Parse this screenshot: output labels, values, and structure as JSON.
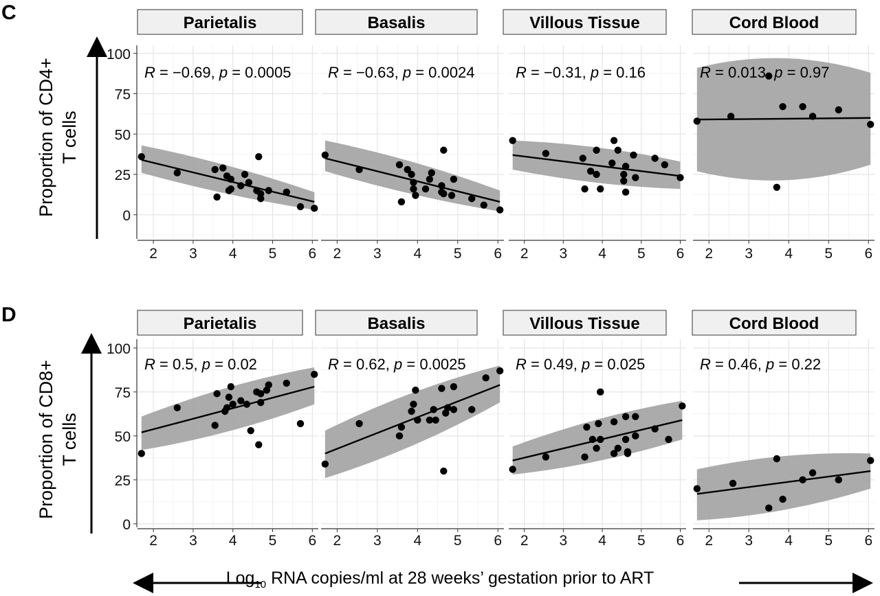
{
  "rows": [
    {
      "letter": "C",
      "ylabel_line1": "Proportion of CD4+",
      "ylabel_line2": "T cells",
      "panels": [
        {
          "facet": "Parietalis",
          "stat": {
            "R": "−0.69",
            "p": "0.0005"
          },
          "chart_data": {
            "type": "scatter",
            "xlim": [
              1.6,
              6.15
            ],
            "ylim": [
              -15,
              105
            ],
            "xticks": [
              2,
              3,
              4,
              5,
              6
            ],
            "yticks": [
              0,
              25,
              50,
              75,
              100
            ],
            "x": [
              1.7,
              2.6,
              3.55,
              3.6,
              3.75,
              3.85,
              3.9,
              3.95,
              3.95,
              4.2,
              4.3,
              4.4,
              4.6,
              4.65,
              4.7,
              4.7,
              4.9,
              5.35,
              5.7,
              6.05
            ],
            "y": [
              36,
              26,
              28,
              11,
              29,
              24,
              15,
              16,
              22,
              18,
              25,
              20,
              15,
              36,
              10,
              13,
              15,
              14,
              5,
              4
            ],
            "fit": {
              "x": [
                1.7,
                6.05
              ],
              "y": [
                34,
                8
              ],
              "ci_low": [
                26,
                3
              ],
              "ci_high": [
                43,
                14
              ]
            }
          }
        },
        {
          "facet": "Basalis",
          "stat": {
            "R": "−0.63",
            "p": "0.0024"
          },
          "chart_data": {
            "type": "scatter",
            "xlim": [
              1.6,
              6.15
            ],
            "ylim": [
              -15,
              105
            ],
            "xticks": [
              2,
              3,
              4,
              5,
              6
            ],
            "yticks": [
              0,
              25,
              50,
              75,
              100
            ],
            "x": [
              1.7,
              2.55,
              3.55,
              3.6,
              3.75,
              3.85,
              3.9,
              3.9,
              3.95,
              4.2,
              4.3,
              4.35,
              4.6,
              4.6,
              4.65,
              4.65,
              4.85,
              4.9,
              5.35,
              5.65,
              6.05
            ],
            "y": [
              37,
              28,
              31,
              8,
              28,
              25,
              20,
              16,
              12,
              16,
              22,
              26,
              18,
              14,
              40,
              13,
              12,
              22,
              10,
              6,
              3
            ],
            "fit": {
              "x": [
                1.7,
                6.05
              ],
              "y": [
                35,
                8
              ],
              "ci_low": [
                27,
                2
              ],
              "ci_high": [
                46,
                15
              ]
            }
          }
        },
        {
          "facet": "Villous Tissue",
          "stat": {
            "R": "−0.31",
            "p": "0.16"
          },
          "chart_data": {
            "type": "scatter",
            "xlim": [
              1.6,
              6.15
            ],
            "ylim": [
              -15,
              105
            ],
            "xticks": [
              2,
              3,
              4,
              5,
              6
            ],
            "yticks": [
              0,
              25,
              50,
              75,
              100
            ],
            "x": [
              1.7,
              2.55,
              3.5,
              3.55,
              3.7,
              3.85,
              3.85,
              3.95,
              4.25,
              4.3,
              4.4,
              4.55,
              4.55,
              4.6,
              4.6,
              4.8,
              4.85,
              5.35,
              5.6,
              6.0
            ],
            "y": [
              46,
              38,
              35,
              16,
              27,
              25,
              40,
              16,
              32,
              46,
              40,
              21,
              25,
              14,
              30,
              37,
              23,
              35,
              31,
              23
            ],
            "fit": {
              "x": [
                1.7,
                6.0
              ],
              "y": [
                37,
                24
              ],
              "ci_low": [
                28,
                16
              ],
              "ci_high": [
                46,
                33
              ]
            }
          }
        },
        {
          "facet": "Cord Blood",
          "stat": {
            "R": "0.013",
            "p": "0.97"
          },
          "chart_data": {
            "type": "scatter",
            "xlim": [
              1.6,
              6.15
            ],
            "ylim": [
              -15,
              105
            ],
            "xticks": [
              2,
              3,
              4,
              5,
              6
            ],
            "yticks": [
              0,
              25,
              50,
              75,
              100
            ],
            "x": [
              1.7,
              2.55,
              3.5,
              3.7,
              3.85,
              4.35,
              4.6,
              5.25,
              6.05
            ],
            "y": [
              58,
              61,
              86,
              17,
              67,
              67,
              61,
              65,
              56
            ],
            "fit": {
              "x": [
                1.7,
                6.05
              ],
              "y": [
                59,
                60
              ],
              "ci_low": [
                27,
                31
              ],
              "ci_high": [
                91,
                88
              ]
            }
          }
        }
      ]
    },
    {
      "letter": "D",
      "ylabel_line1": "Proportion of CD8+",
      "ylabel_line2": "T cells",
      "panels": [
        {
          "facet": "Parietalis",
          "stat": {
            "R": "0.5",
            "p": "0.02"
          },
          "chart_data": {
            "type": "scatter",
            "xlim": [
              1.6,
              6.15
            ],
            "ylim": [
              -2,
              105
            ],
            "xticks": [
              2,
              3,
              4,
              5,
              6
            ],
            "yticks": [
              0,
              25,
              50,
              75,
              100
            ],
            "x": [
              1.7,
              2.6,
              3.55,
              3.6,
              3.8,
              3.85,
              3.9,
              3.95,
              4.0,
              4.2,
              4.35,
              4.45,
              4.6,
              4.65,
              4.7,
              4.7,
              4.85,
              4.9,
              5.35,
              5.7,
              6.05
            ],
            "y": [
              40,
              66,
              56,
              74,
              64,
              66,
              72,
              78,
              68,
              70,
              68,
              53,
              75,
              45,
              69,
              74,
              76,
              79,
              80,
              57,
              85
            ],
            "fit": {
              "x": [
                1.7,
                6.05
              ],
              "y": [
                52,
                78
              ],
              "ci_low": [
                42,
                68
              ],
              "ci_high": [
                61,
                89
              ]
            }
          }
        },
        {
          "facet": "Basalis",
          "stat": {
            "R": "0.62",
            "p": "0.0025"
          },
          "chart_data": {
            "type": "scatter",
            "xlim": [
              1.6,
              6.15
            ],
            "ylim": [
              -2,
              105
            ],
            "xticks": [
              2,
              3,
              4,
              5,
              6
            ],
            "yticks": [
              0,
              25,
              50,
              75,
              100
            ],
            "x": [
              1.7,
              2.55,
              3.55,
              3.6,
              3.85,
              3.9,
              3.95,
              4.0,
              4.3,
              4.4,
              4.45,
              4.6,
              4.65,
              4.7,
              4.75,
              4.9,
              4.9,
              5.35,
              5.7,
              6.05
            ],
            "y": [
              34,
              57,
              50,
              55,
              64,
              68,
              76,
              59,
              59,
              65,
              59,
              77,
              30,
              63,
              66,
              65,
              78,
              65,
              83,
              87
            ],
            "fit": {
              "x": [
                1.7,
                6.05
              ],
              "y": [
                40,
                79
              ],
              "ci_low": [
                26,
                69
              ],
              "ci_high": [
                53,
                90
              ]
            }
          }
        },
        {
          "facet": "Villous Tissue",
          "stat": {
            "R": "0.49",
            "p": "0.025"
          },
          "chart_data": {
            "type": "scatter",
            "xlim": [
              1.6,
              6.15
            ],
            "ylim": [
              -2,
              105
            ],
            "xticks": [
              2,
              3,
              4,
              5,
              6
            ],
            "yticks": [
              0,
              25,
              50,
              75,
              100
            ],
            "x": [
              1.7,
              2.55,
              3.55,
              3.6,
              3.75,
              3.85,
              3.9,
              3.95,
              3.95,
              4.3,
              4.3,
              4.4,
              4.6,
              4.6,
              4.65,
              4.65,
              4.85,
              4.85,
              5.35,
              5.7,
              6.05
            ],
            "y": [
              31,
              38,
              38,
              55,
              48,
              43,
              57,
              75,
              48,
              58,
              40,
              43,
              61,
              48,
              40,
              41,
              50,
              61,
              54,
              48,
              67
            ],
            "fit": {
              "x": [
                1.7,
                6.05
              ],
              "y": [
                36,
                59
              ],
              "ci_low": [
                28,
                48
              ],
              "ci_high": [
                44,
                70
              ]
            }
          }
        },
        {
          "facet": "Cord Blood",
          "stat": {
            "R": "0.46",
            "p": "0.22"
          },
          "chart_data": {
            "type": "scatter",
            "xlim": [
              1.6,
              6.15
            ],
            "ylim": [
              -2,
              105
            ],
            "xticks": [
              2,
              3,
              4,
              5,
              6
            ],
            "yticks": [
              0,
              25,
              50,
              75,
              100
            ],
            "x": [
              1.7,
              2.6,
              3.5,
              3.7,
              3.85,
              4.35,
              4.6,
              5.25,
              6.05
            ],
            "y": [
              20,
              23,
              9,
              37,
              14,
              25,
              29,
              25,
              36
            ],
            "fit": {
              "x": [
                1.7,
                6.05
              ],
              "y": [
                17,
                30
              ],
              "ci_low": [
                2,
                20
              ],
              "ci_high": [
                31,
                40
              ]
            }
          }
        }
      ]
    }
  ],
  "xlabel": {
    "pre": "Log",
    "sub": "10",
    "post": " RNA copies/ml at 28 weeks’ gestation prior to ART"
  },
  "colors": {
    "ci_band": "#a6a6a6",
    "line": "#000000",
    "point": "#000000",
    "grid": "#e4e4e4",
    "strip_fill": "#f0f0f0",
    "strip_border": "#555555"
  }
}
